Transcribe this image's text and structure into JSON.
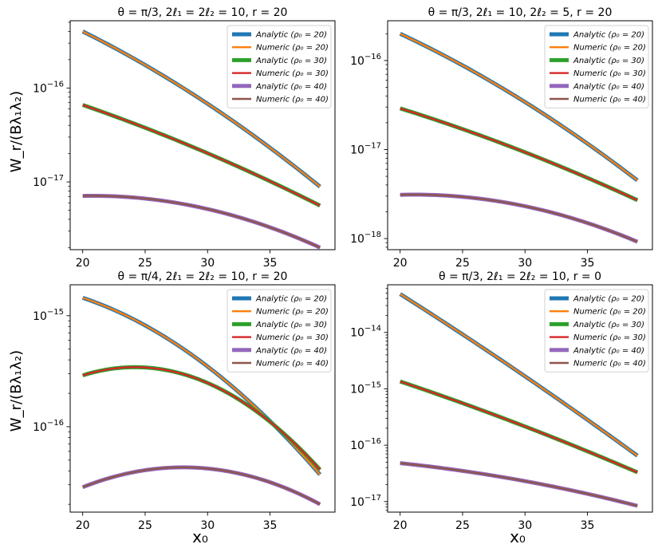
{
  "figure": {
    "xlabel": "x₀",
    "ylabel": "W_r/(Bλ₁λ₂)"
  },
  "chart_data": [
    {
      "type": "line",
      "title": "θ = π/3, 2ℓ₁ = 2ℓ₂ = 10, r = 20",
      "xlim": [
        19,
        40.2
      ],
      "ylim": [
        1.9e-18,
        5.2e-16
      ],
      "xticks": [
        20,
        25,
        30,
        35
      ],
      "yticks": [
        {
          "value": 1e-16,
          "base": "10",
          "exp": "−16"
        },
        {
          "value": 1e-17,
          "base": "10",
          "exp": "−17"
        }
      ],
      "legend_position": "top-right",
      "x": [
        20,
        39
      ],
      "series": [
        {
          "name": "Analytic (ρ₀ = 20)",
          "color": "#1f77b4",
          "style": "analytic",
          "start": 4e-16,
          "end": 8.9e-18,
          "bow": 0.1
        },
        {
          "name": "Numeric (ρ₀ = 20)",
          "color": "#ff7f0e",
          "style": "numeric",
          "start": 4e-16,
          "end": 8.9e-18,
          "bow": 0.1
        },
        {
          "name": "Analytic (ρ₀ = 30)",
          "color": "#2ca02c",
          "style": "analytic",
          "start": 6.6e-17,
          "end": 5.6e-18,
          "bow": 0.05
        },
        {
          "name": "Numeric (ρ₀ = 30)",
          "color": "#d62728",
          "style": "numeric",
          "start": 6.6e-17,
          "end": 5.6e-18,
          "bow": 0.05
        },
        {
          "name": "Analytic (ρ₀ = 40)",
          "color": "#9467bd",
          "style": "analytic",
          "start": 7.1e-18,
          "end": 2e-18,
          "bow": 0.15
        },
        {
          "name": "Numeric (ρ₀ = 40)",
          "color": "#8c564b",
          "style": "numeric",
          "start": 7.1e-18,
          "end": 2e-18,
          "bow": 0.15
        }
      ]
    },
    {
      "type": "line",
      "title": "θ = π/3, 2ℓ₁ = 10, 2ℓ₂ = 5, r = 20",
      "xlim": [
        19,
        40.2
      ],
      "ylim": [
        7.5e-19,
        2.8e-16
      ],
      "xticks": [
        20,
        25,
        30,
        35
      ],
      "yticks": [
        {
          "value": 1e-16,
          "base": "10",
          "exp": "−16"
        },
        {
          "value": 1e-17,
          "base": "10",
          "exp": "−17"
        },
        {
          "value": 1e-18,
          "base": "10",
          "exp": "−18"
        }
      ],
      "legend_position": "top-right",
      "x": [
        20,
        39
      ],
      "series": [
        {
          "name": "Analytic (ρ₀ = 20)",
          "color": "#1f77b4",
          "style": "analytic",
          "start": 2e-16,
          "end": 4.5e-18,
          "bow": 0.1
        },
        {
          "name": "Numeric (ρ₀ = 20)",
          "color": "#ff7f0e",
          "style": "numeric",
          "start": 2e-16,
          "end": 4.5e-18,
          "bow": 0.1
        },
        {
          "name": "Analytic (ρ₀ = 30)",
          "color": "#2ca02c",
          "style": "analytic",
          "start": 2.9e-17,
          "end": 2.7e-18,
          "bow": 0.05
        },
        {
          "name": "Numeric (ρ₀ = 30)",
          "color": "#d62728",
          "style": "numeric",
          "start": 2.9e-17,
          "end": 2.7e-18,
          "bow": 0.05
        },
        {
          "name": "Analytic (ρ₀ = 40)",
          "color": "#9467bd",
          "style": "analytic",
          "start": 3.1e-18,
          "end": 9.2e-19,
          "bow": 0.15
        },
        {
          "name": "Numeric (ρ₀ = 40)",
          "color": "#8c564b",
          "style": "numeric",
          "start": 3.1e-18,
          "end": 9.2e-19,
          "bow": 0.15
        }
      ]
    },
    {
      "type": "line",
      "title": "θ = π/4, 2ℓ₁ = 2ℓ₂ = 10, r = 20",
      "xlim": [
        19,
        40.2
      ],
      "ylim": [
        1.7e-17,
        1.9e-15
      ],
      "xticks": [
        20,
        25,
        30,
        35
      ],
      "yticks": [
        {
          "value": 1e-15,
          "base": "10",
          "exp": "−15"
        },
        {
          "value": 1e-16,
          "base": "10",
          "exp": "−16"
        }
      ],
      "legend_position": "top-right",
      "x": [
        20,
        39
      ],
      "series": [
        {
          "name": "Analytic (ρ₀ = 20)",
          "color": "#1f77b4",
          "style": "analytic",
          "start": 1.45e-15,
          "end": 3.7e-17,
          "bow": 0.22
        },
        {
          "name": "Numeric (ρ₀ = 20)",
          "color": "#ff7f0e",
          "style": "numeric",
          "start": 1.45e-15,
          "end": 3.7e-17,
          "bow": 0.22
        },
        {
          "name": "Analytic (ρ₀ = 30)",
          "color": "#2ca02c",
          "style": "analytic",
          "start": 2.9e-16,
          "end": 4.1e-17,
          "bow": 0.38
        },
        {
          "name": "Numeric (ρ₀ = 30)",
          "color": "#d62728",
          "style": "numeric",
          "start": 2.9e-16,
          "end": 4.1e-17,
          "bow": 0.38
        },
        {
          "name": "Analytic (ρ₀ = 40)",
          "color": "#9467bd",
          "style": "analytic",
          "start": 2.85e-17,
          "end": 2e-17,
          "bow": 0.25
        },
        {
          "name": "Numeric (ρ₀ = 40)",
          "color": "#8c564b",
          "style": "numeric",
          "start": 2.85e-17,
          "end": 2e-17,
          "bow": 0.25
        }
      ]
    },
    {
      "type": "line",
      "title": "θ = π/3, 2ℓ₁ = 2ℓ₂ = 10, r = 0",
      "xlim": [
        19,
        40.2
      ],
      "ylim": [
        6.5e-18,
        7e-14
      ],
      "xticks": [
        20,
        25,
        30,
        35
      ],
      "yticks": [
        {
          "value": 1e-14,
          "base": "10",
          "exp": "−14"
        },
        {
          "value": 1e-15,
          "base": "10",
          "exp": "−15"
        },
        {
          "value": 1e-16,
          "base": "10",
          "exp": "−16"
        },
        {
          "value": 1e-17,
          "base": "10",
          "exp": "−17"
        }
      ],
      "legend_position": "top-right",
      "x": [
        20,
        39
      ],
      "series": [
        {
          "name": "Analytic (ρ₀ = 20)",
          "color": "#1f77b4",
          "style": "analytic",
          "start": 4.8e-14,
          "end": 6.5e-17,
          "bow": 0.05
        },
        {
          "name": "Numeric (ρ₀ = 20)",
          "color": "#ff7f0e",
          "style": "numeric",
          "start": 4.8e-14,
          "end": 6.5e-17,
          "bow": 0.05
        },
        {
          "name": "Analytic (ρ₀ = 30)",
          "color": "#2ca02c",
          "style": "analytic",
          "start": 1.35e-15,
          "end": 3.3e-17,
          "bow": 0.05
        },
        {
          "name": "Numeric (ρ₀ = 30)",
          "color": "#d62728",
          "style": "numeric",
          "start": 1.35e-15,
          "end": 3.3e-17,
          "bow": 0.05
        },
        {
          "name": "Analytic (ρ₀ = 40)",
          "color": "#9467bd",
          "style": "analytic",
          "start": 4.8e-17,
          "end": 8.4e-18,
          "bow": 0.08
        },
        {
          "name": "Numeric (ρ₀ = 40)",
          "color": "#8c564b",
          "style": "numeric",
          "start": 4.8e-17,
          "end": 8.4e-18,
          "bow": 0.08
        }
      ]
    }
  ]
}
